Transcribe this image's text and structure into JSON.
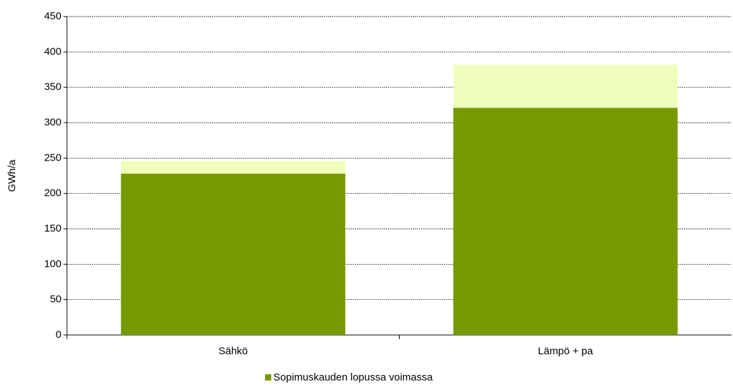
{
  "chart_data": {
    "type": "stacked_bar",
    "y_label": "GWh/a",
    "categories": [
      "Sähkö",
      "Lämpö + pa"
    ],
    "series": [
      {
        "name": "Sopimuskauden lopussa voimassa",
        "color": "#779900",
        "values": [
          228,
          321
        ]
      },
      {
        "color": "#eeffbb",
        "values": [
          18,
          61
        ]
      }
    ],
    "ylim": [
      0,
      450
    ],
    "yticks": [
      0,
      50,
      100,
      150,
      200,
      250,
      300,
      350,
      400,
      450
    ],
    "grid": true,
    "legend": "bottom"
  }
}
